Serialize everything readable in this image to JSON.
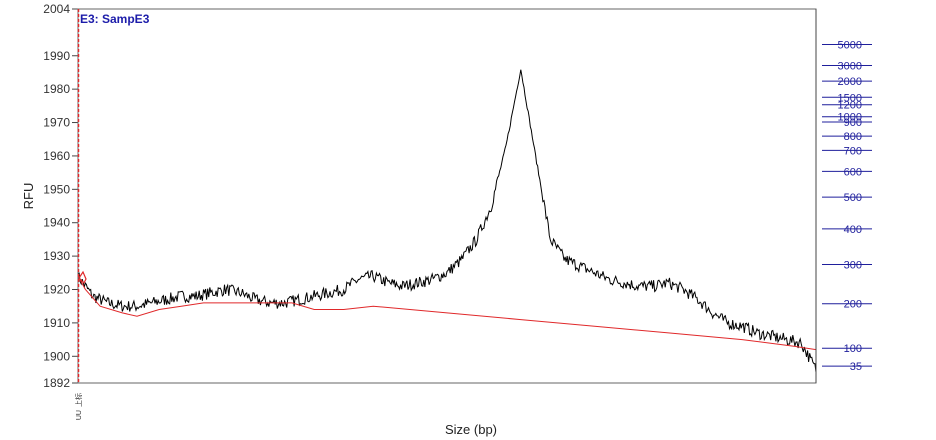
{
  "chart_data": {
    "type": "line",
    "title": "E3: SampE3",
    "xlabel": "Size (bp)",
    "ylabel": "RFU",
    "ylim": [
      1892,
      2004
    ],
    "y_ticks": [
      1892,
      1900,
      1910,
      1920,
      1930,
      1940,
      1950,
      1960,
      1970,
      1980,
      1990,
      2004
    ],
    "x_tick_labels": [
      "上标",
      "UU"
    ],
    "size_ladder": [
      {
        "label": "5000",
        "frac": 0.095
      },
      {
        "label": "3000",
        "frac": 0.151
      },
      {
        "label": "2000",
        "frac": 0.193
      },
      {
        "label": "1500",
        "frac": 0.236
      },
      {
        "label": "1200",
        "frac": 0.256
      },
      {
        "label": "1000",
        "frac": 0.288
      },
      {
        "label": "900",
        "frac": 0.302
      },
      {
        "label": "800",
        "frac": 0.34
      },
      {
        "label": "700",
        "frac": 0.378
      },
      {
        "label": "600",
        "frac": 0.434
      },
      {
        "label": "500",
        "frac": 0.503
      },
      {
        "label": "400",
        "frac": 0.588
      },
      {
        "label": "300",
        "frac": 0.683
      },
      {
        "label": "200",
        "frac": 0.788
      },
      {
        "label": "100",
        "frac": 0.907
      },
      {
        "label": "35",
        "frac": 0.955
      }
    ],
    "series": [
      {
        "color": "#000000",
        "x": [
          0.0,
          0.02,
          0.04,
          0.06,
          0.08,
          0.1,
          0.12,
          0.14,
          0.16,
          0.18,
          0.2,
          0.22,
          0.24,
          0.26,
          0.28,
          0.3,
          0.32,
          0.34,
          0.36,
          0.38,
          0.4,
          0.42,
          0.44,
          0.46,
          0.48,
          0.5,
          0.52,
          0.54,
          0.56,
          0.58,
          0.6,
          0.62,
          0.64,
          0.66,
          0.68,
          0.7,
          0.72,
          0.74,
          0.76,
          0.78,
          0.8,
          0.82,
          0.84,
          0.86,
          0.88,
          0.9,
          0.92,
          0.94,
          0.96,
          0.98,
          1.0
        ],
        "y": [
          1924,
          1918,
          1916,
          1915,
          1915,
          1916,
          1917,
          1918,
          1918,
          1919,
          1920,
          1919,
          1917,
          1916,
          1916,
          1917,
          1918,
          1919,
          1920,
          1923,
          1924,
          1922,
          1921,
          1922,
          1923,
          1925,
          1929,
          1935,
          1945,
          1963,
          1986,
          1960,
          1935,
          1929,
          1927,
          1925,
          1923,
          1922,
          1921,
          1921,
          1922,
          1920,
          1917,
          1913,
          1910,
          1909,
          1907,
          1906,
          1905,
          1904,
          1896
        ]
      },
      {
        "color": "#e0282a",
        "x": [
          0.0,
          0.01,
          0.03,
          0.06,
          0.08,
          0.11,
          0.14,
          0.17,
          0.2,
          0.23,
          0.26,
          0.29,
          0.32,
          0.36,
          0.4,
          0.5,
          0.6,
          0.7,
          0.8,
          0.9,
          0.97,
          1.0
        ],
        "y": [
          1924,
          1920,
          1915,
          1913,
          1912,
          1914,
          1915,
          1916,
          1916,
          1916,
          1916,
          1916,
          1914,
          1914,
          1915,
          1913,
          1911,
          1909,
          1907,
          1905,
          1903,
          1902
        ]
      }
    ]
  }
}
